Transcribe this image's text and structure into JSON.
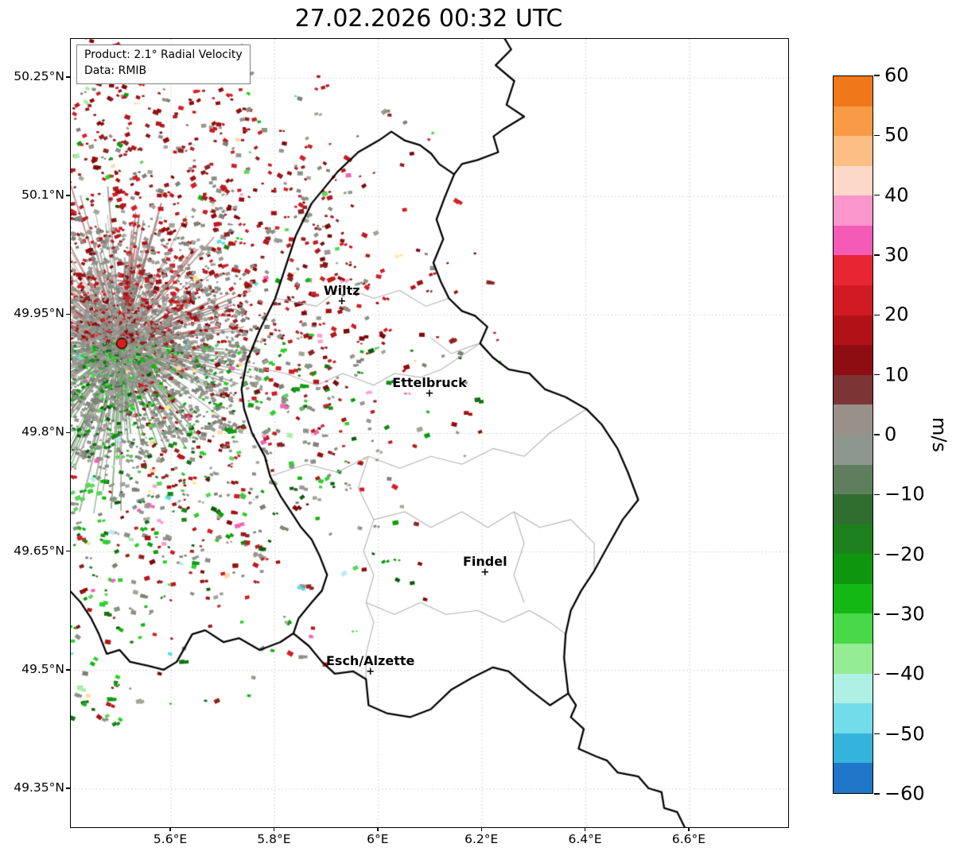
{
  "title": "27.02.2026 00:32 UTC",
  "info_box": {
    "line1": "Product: 2.1° Radial Velocity",
    "line2": "Data: RMIB"
  },
  "colorbar": {
    "unit": "m/s",
    "vmin": -60,
    "vmax": 60,
    "ticks": [
      60,
      50,
      40,
      30,
      20,
      10,
      0,
      -10,
      -20,
      -30,
      -40,
      -50,
      -60
    ],
    "tick_labels": [
      "60",
      "50",
      "40",
      "30",
      "20",
      "10",
      "0",
      "−10",
      "−20",
      "−30",
      "−40",
      "−50",
      "−60"
    ],
    "colors_top_to_bottom": [
      "#f07818",
      "#f89a46",
      "#fcbe82",
      "#fbd8c8",
      "#fa96cc",
      "#f45bb6",
      "#e82532",
      "#d11a23",
      "#b21217",
      "#8e0d12",
      "#7c3434",
      "#9a908a",
      "#8d978d",
      "#5e7e5e",
      "#2f6e2f",
      "#1c801c",
      "#0f960f",
      "#14b814",
      "#48d848",
      "#94ec94",
      "#aef0e4",
      "#72dcea",
      "#34b4dc",
      "#2076c8"
    ]
  },
  "axes": {
    "lat_ticks": [
      "50.25°N",
      "50.1°N",
      "49.95°N",
      "49.8°N",
      "49.65°N",
      "49.5°N",
      "49.35°N"
    ],
    "lat_values": [
      50.25,
      50.1,
      49.95,
      49.8,
      49.65,
      49.5,
      49.35
    ],
    "lon_ticks": [
      "5.6°E",
      "5.8°E",
      "6°E",
      "6.2°E",
      "6.4°E",
      "6.6°E"
    ],
    "lon_values": [
      5.6,
      5.8,
      6.0,
      6.2,
      6.4,
      6.6
    ],
    "lon_range": [
      5.4067,
      6.7902
    ],
    "lat_range": [
      49.3017,
      50.2993
    ]
  },
  "cities": [
    {
      "name": "Wiltz",
      "lon": 5.931,
      "lat": 49.965
    },
    {
      "name": "Ettelbruck",
      "lon": 6.1,
      "lat": 49.849
    },
    {
      "name": "Findel",
      "lon": 6.207,
      "lat": 49.623
    },
    {
      "name": "Esch/Alzette",
      "lon": 5.986,
      "lat": 49.497
    }
  ],
  "radar": {
    "lon": 5.505,
    "lat": 49.914
  },
  "chart_data": {
    "type": "map",
    "subtype": "doppler_radar_radial_velocity",
    "product": "2.1° Radial Velocity",
    "source": "RMIB",
    "timestamp": "27.02.2026 00:32 UTC",
    "unit": "m/s",
    "value_range": [
      -60,
      60
    ],
    "radar_site": {
      "lon": 5.505,
      "lat": 49.914
    },
    "pattern": {
      "positive_red": "speckled echoes north and northeast of radar (motion away from radar, ~10-30 m/s)",
      "negative_green": "speckled echoes southwest and south of radar (motion toward radar, ~-10 to -30 m/s)",
      "near_zero_gray": "dense near-zero velocity clutter surrounding the radar site"
    },
    "borders": {
      "national": [
        [
          [
            6.234,
            50.31
          ],
          [
            6.256,
            50.286
          ],
          [
            6.226,
            50.266
          ],
          [
            6.262,
            50.246
          ],
          [
            6.247,
            50.216
          ],
          [
            6.281,
            50.201
          ],
          [
            6.243,
            50.186
          ],
          [
            6.222,
            50.176
          ],
          [
            6.231,
            50.156
          ],
          [
            6.191,
            50.146
          ],
          [
            6.161,
            50.141
          ],
          [
            6.146,
            50.128
          ]
        ],
        [
          [
            6.025,
            50.182
          ],
          [
            6.05,
            50.171
          ],
          [
            6.08,
            50.165
          ],
          [
            6.102,
            50.154
          ],
          [
            6.117,
            50.141
          ],
          [
            6.146,
            50.128
          ],
          [
            6.128,
            50.099
          ],
          [
            6.112,
            50.071
          ],
          [
            6.125,
            50.046
          ],
          [
            6.106,
            50.016
          ],
          [
            6.121,
            49.991
          ],
          [
            6.136,
            49.971
          ],
          [
            6.161,
            49.955
          ],
          [
            6.186,
            49.949
          ],
          [
            6.21,
            49.935
          ],
          [
            6.196,
            49.914
          ],
          [
            6.221,
            49.896
          ],
          [
            6.251,
            49.881
          ],
          [
            6.291,
            49.876
          ],
          [
            6.321,
            49.856
          ],
          [
            6.361,
            49.846
          ],
          [
            6.401,
            49.831
          ],
          [
            6.431,
            49.811
          ],
          [
            6.461,
            49.781
          ],
          [
            6.481,
            49.751
          ],
          [
            6.501,
            49.716
          ],
          [
            6.471,
            49.691
          ],
          [
            6.441,
            49.656
          ],
          [
            6.416,
            49.626
          ],
          [
            6.391,
            49.601
          ],
          [
            6.371,
            49.576
          ],
          [
            6.361,
            49.546
          ],
          [
            6.358,
            49.516
          ],
          [
            6.366,
            49.471
          ],
          [
            6.331,
            49.456
          ],
          [
            6.291,
            49.476
          ],
          [
            6.251,
            49.499
          ],
          [
            6.221,
            49.504
          ],
          [
            6.181,
            49.491
          ],
          [
            6.141,
            49.476
          ],
          [
            6.101,
            49.451
          ],
          [
            6.061,
            49.441
          ],
          [
            6.016,
            49.446
          ],
          [
            5.981,
            49.456
          ],
          [
            5.976,
            49.489
          ],
          [
            5.951,
            49.499
          ],
          [
            5.916,
            49.496
          ],
          [
            5.891,
            49.511
          ],
          [
            5.866,
            49.531
          ],
          [
            5.836,
            49.547
          ],
          [
            5.846,
            49.566
          ],
          [
            5.871,
            49.586
          ],
          [
            5.891,
            49.601
          ],
          [
            5.901,
            49.621
          ],
          [
            5.886,
            49.646
          ],
          [
            5.871,
            49.666
          ],
          [
            5.851,
            49.681
          ],
          [
            5.831,
            49.701
          ],
          [
            5.811,
            49.721
          ],
          [
            5.791,
            49.746
          ],
          [
            5.781,
            49.771
          ],
          [
            5.756,
            49.801
          ],
          [
            5.741,
            49.831
          ],
          [
            5.736,
            49.856
          ],
          [
            5.746,
            49.891
          ],
          [
            5.771,
            49.931
          ],
          [
            5.801,
            49.971
          ],
          [
            5.821,
            50.011
          ],
          [
            5.841,
            50.051
          ],
          [
            5.871,
            50.091
          ],
          [
            5.921,
            50.131
          ],
          [
            5.961,
            50.156
          ],
          [
            6.001,
            50.171
          ],
          [
            6.025,
            50.182
          ]
        ],
        [
          [
            5.836,
            49.547
          ],
          [
            5.811,
            49.536
          ],
          [
            5.771,
            49.526
          ],
          [
            5.731,
            49.541
          ],
          [
            5.701,
            49.536
          ],
          [
            5.666,
            49.551
          ],
          [
            5.641,
            49.546
          ],
          [
            5.611,
            49.511
          ],
          [
            5.586,
            49.501
          ],
          [
            5.556,
            49.506
          ],
          [
            5.521,
            49.511
          ],
          [
            5.501,
            49.526
          ],
          [
            5.476,
            49.521
          ],
          [
            5.461,
            49.546
          ],
          [
            5.446,
            49.566
          ],
          [
            5.426,
            49.586
          ],
          [
            5.405,
            49.601
          ]
        ],
        [
          [
            6.366,
            49.471
          ],
          [
            6.381,
            49.456
          ],
          [
            6.371,
            49.441
          ],
          [
            6.396,
            49.426
          ],
          [
            6.386,
            49.401
          ],
          [
            6.421,
            49.391
          ],
          [
            6.441,
            49.386
          ],
          [
            6.461,
            49.371
          ],
          [
            6.501,
            49.366
          ],
          [
            6.521,
            49.351
          ],
          [
            6.546,
            49.346
          ],
          [
            6.551,
            49.326
          ],
          [
            6.576,
            49.321
          ],
          [
            6.591,
            49.301
          ],
          [
            6.601,
            49.294
          ]
        ]
      ],
      "internal": [
        [
          [
            5.801,
            49.971
          ],
          [
            5.881,
            49.961
          ],
          [
            5.931,
            49.986
          ],
          [
            5.991,
            49.971
          ],
          [
            6.041,
            49.981
          ],
          [
            6.091,
            49.961
          ],
          [
            6.136,
            49.971
          ]
        ],
        [
          [
            5.746,
            49.886
          ],
          [
            5.821,
            49.876
          ],
          [
            5.881,
            49.861
          ],
          [
            5.931,
            49.876
          ],
          [
            5.991,
            49.861
          ],
          [
            6.031,
            49.876
          ],
          [
            6.081,
            49.871
          ],
          [
            6.121,
            49.881
          ],
          [
            6.196,
            49.914
          ]
        ],
        [
          [
            5.791,
            49.746
          ],
          [
            5.861,
            49.761
          ],
          [
            5.921,
            49.751
          ],
          [
            5.981,
            49.771
          ],
          [
            6.041,
            49.756
          ],
          [
            6.101,
            49.771
          ],
          [
            6.161,
            49.761
          ],
          [
            6.221,
            49.781
          ],
          [
            6.281,
            49.771
          ],
          [
            6.331,
            49.801
          ],
          [
            6.401,
            49.831
          ]
        ],
        [
          [
            5.981,
            49.771
          ],
          [
            5.961,
            49.731
          ],
          [
            5.991,
            49.691
          ],
          [
            5.971,
            49.651
          ],
          [
            5.991,
            49.621
          ],
          [
            5.976,
            49.586
          ],
          [
            5.991,
            49.561
          ],
          [
            5.976,
            49.521
          ],
          [
            5.976,
            49.489
          ]
        ],
        [
          [
            5.991,
            49.691
          ],
          [
            6.051,
            49.701
          ],
          [
            6.101,
            49.681
          ],
          [
            6.161,
            49.701
          ],
          [
            6.211,
            49.681
          ],
          [
            6.261,
            49.701
          ],
          [
            6.311,
            49.681
          ],
          [
            6.371,
            49.691
          ],
          [
            6.416,
            49.661
          ],
          [
            6.416,
            49.626
          ]
        ],
        [
          [
            5.976,
            49.586
          ],
          [
            6.031,
            49.571
          ],
          [
            6.081,
            49.586
          ],
          [
            6.131,
            49.571
          ],
          [
            6.191,
            49.576
          ],
          [
            6.241,
            49.561
          ],
          [
            6.291,
            49.576
          ],
          [
            6.331,
            49.561
          ],
          [
            6.361,
            49.546
          ]
        ],
        [
          [
            6.261,
            49.701
          ],
          [
            6.281,
            49.661
          ],
          [
            6.261,
            49.621
          ],
          [
            6.281,
            49.586
          ]
        ],
        [
          [
            6.101,
            49.921
          ],
          [
            6.141,
            49.901
          ],
          [
            6.181,
            49.911
          ],
          [
            6.196,
            49.914
          ]
        ]
      ]
    },
    "scatter": {
      "seed": 20260227,
      "field_count": 4000,
      "field_rmax": 480,
      "field_exp": 0.78,
      "field_size": [
        3,
        7.5
      ],
      "core_count": 3000,
      "core_rmax": 160,
      "core_exp": 1.35,
      "core_size": [
        2.5,
        6
      ],
      "streak_count": 300,
      "palettes": {
        "red": [
          "#7d0a0c",
          "#91100f",
          "#a31315",
          "#b21a1c",
          "#c21a22",
          "#ce2129",
          "#8e2424"
        ],
        "green": [
          "#0b5c0b",
          "#147114",
          "#1c871c",
          "#0f9d0f",
          "#13b513",
          "#30cf30",
          "#5ad65a"
        ],
        "gray": [
          "#8e8e86",
          "#97978f",
          "#80807a",
          "#a4a49c",
          "#8a9288"
        ],
        "outlier": [
          "#ff9ed0",
          "#f263b8",
          "#63d8e6",
          "#a6f0a6",
          "#ffd9a0",
          "#bce9f9",
          "#ffe98c"
        ]
      },
      "extra_points": [
        {
          "lon": 6.08,
          "lat": 49.635,
          "color": "#7d0a0c"
        },
        {
          "lon": 6.07,
          "lat": 49.784,
          "color": "#b21a1c"
        },
        {
          "lon": 5.433,
          "lat": 49.457,
          "color": "#13b513"
        },
        {
          "lon": 5.759,
          "lat": 49.491,
          "color": "#97978f"
        },
        {
          "lon": 5.625,
          "lat": 49.528,
          "color": "#8e8e86"
        },
        {
          "lon": 5.578,
          "lat": 49.496,
          "color": "#7d0a0c"
        },
        {
          "lon": 5.87,
          "lat": 49.543,
          "color": "#f263b8"
        },
        {
          "lon": 5.598,
          "lat": 49.521,
          "color": "#63d8e6"
        },
        {
          "lon": 6.09,
          "lat": 49.59,
          "color": "#7d0a0c"
        }
      ]
    }
  }
}
